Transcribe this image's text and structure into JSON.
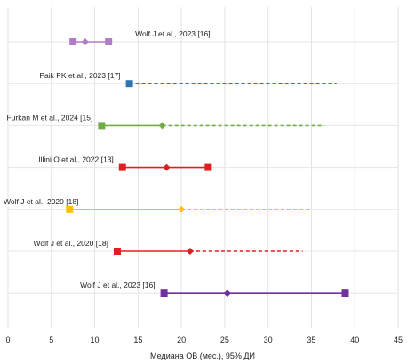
{
  "chart_data": {
    "type": "forest",
    "xlabel": "Медиана ОВ (мес.), 95% ДИ",
    "xlim": [
      0,
      45
    ],
    "xticks": [
      "0",
      "5",
      "10",
      "15",
      "20",
      "25",
      "30",
      "35",
      "40",
      "45"
    ],
    "grid": true,
    "rows": [
      {
        "label": "Wolf J et al., 2023 [16]",
        "color": "#b07cc6",
        "lower": 7.5,
        "median": 8.9,
        "upper": 11.6,
        "upper_estimated": false,
        "marker": "diamond"
      },
      {
        "label": "Paik PK et al., 2023 [17]",
        "color": "#2e75b6",
        "lower": 14.0,
        "median": 14.0,
        "upper": 37.9,
        "upper_estimated": true,
        "marker": "square"
      },
      {
        "label": "Furkan M et al., 2024 [15]",
        "color": "#70ad47",
        "lower": 10.8,
        "median": 17.8,
        "upper": 36.5,
        "upper_estimated": true,
        "marker": "diamond"
      },
      {
        "label": "Illini O et al., 2022 [13]",
        "color": "#e02020",
        "lower": 13.2,
        "median": 18.3,
        "upper": 23.1,
        "upper_estimated": false,
        "marker": "diamond"
      },
      {
        "label": "Wolf J et al., 2020 [18]",
        "color": "#ffc000",
        "lower": 7.1,
        "median": 20.0,
        "upper": 34.9,
        "upper_estimated": true,
        "marker": "diamond"
      },
      {
        "label": "Wolf J et al., 2020 [18]",
        "color": "#e02020",
        "lower": 12.6,
        "median": 21.0,
        "upper": 34.0,
        "upper_estimated": true,
        "marker": "diamond"
      },
      {
        "label": "Wolf J et al., 2023 [16]",
        "color": "#7030a0",
        "lower": 18.0,
        "median": 25.3,
        "upper": 38.9,
        "upper_estimated": false,
        "marker": "diamond"
      }
    ]
  }
}
